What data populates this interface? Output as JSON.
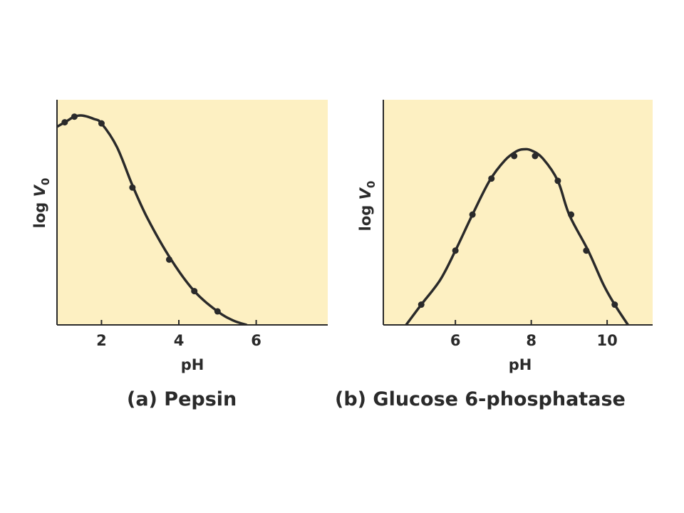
{
  "colors": {
    "plot_background": "#fdf0c2",
    "ink": "#2a2a2a"
  },
  "chart_data": [
    {
      "type": "line",
      "caption": "(a)  Pepsin",
      "title": "Pepsin",
      "xlabel": "pH",
      "ylabel_main": "log ",
      "ylabel_var": "V",
      "ylabel_sub": "0",
      "xlim": [
        0.85,
        7.85
      ],
      "ylim": [
        0,
        1
      ],
      "xticks": [
        2,
        4,
        6
      ],
      "xtick_labels": [
        "2",
        "4",
        "6"
      ],
      "curve": [
        {
          "x": 0.85,
          "y": 0.88
        },
        {
          "x": 1.1,
          "y": 0.905
        },
        {
          "x": 1.3,
          "y": 0.925
        },
        {
          "x": 1.5,
          "y": 0.93
        },
        {
          "x": 1.8,
          "y": 0.915
        },
        {
          "x": 2.0,
          "y": 0.895
        },
        {
          "x": 2.4,
          "y": 0.79
        },
        {
          "x": 2.8,
          "y": 0.62
        },
        {
          "x": 3.2,
          "y": 0.47
        },
        {
          "x": 3.8,
          "y": 0.29
        },
        {
          "x": 4.4,
          "y": 0.15
        },
        {
          "x": 5.0,
          "y": 0.06
        },
        {
          "x": 5.4,
          "y": 0.02
        },
        {
          "x": 5.75,
          "y": 0.0
        }
      ],
      "points": [
        {
          "x": 1.05,
          "y": 0.9
        },
        {
          "x": 1.3,
          "y": 0.925
        },
        {
          "x": 2.0,
          "y": 0.895
        },
        {
          "x": 2.8,
          "y": 0.61
        },
        {
          "x": 3.75,
          "y": 0.29
        },
        {
          "x": 4.4,
          "y": 0.15
        },
        {
          "x": 5.0,
          "y": 0.06
        }
      ]
    },
    {
      "type": "line",
      "caption": "(b) Glucose 6-phosphatase",
      "title": "Glucose 6-phosphatase",
      "xlabel": "pH",
      "ylabel_main": "log ",
      "ylabel_var": "V",
      "ylabel_sub": "0",
      "xlim": [
        4.1,
        11.2
      ],
      "ylim": [
        0,
        1
      ],
      "xticks": [
        6,
        8,
        10
      ],
      "xtick_labels": [
        "6",
        "8",
        "10"
      ],
      "curve": [
        {
          "x": 4.7,
          "y": 0.0
        },
        {
          "x": 5.1,
          "y": 0.09
        },
        {
          "x": 5.6,
          "y": 0.2
        },
        {
          "x": 6.0,
          "y": 0.33
        },
        {
          "x": 6.45,
          "y": 0.49
        },
        {
          "x": 6.9,
          "y": 0.64
        },
        {
          "x": 7.3,
          "y": 0.73
        },
        {
          "x": 7.6,
          "y": 0.77
        },
        {
          "x": 7.8,
          "y": 0.78
        },
        {
          "x": 8.0,
          "y": 0.775
        },
        {
          "x": 8.3,
          "y": 0.74
        },
        {
          "x": 8.7,
          "y": 0.64
        },
        {
          "x": 9.0,
          "y": 0.49
        },
        {
          "x": 9.5,
          "y": 0.33
        },
        {
          "x": 9.9,
          "y": 0.18
        },
        {
          "x": 10.2,
          "y": 0.09
        },
        {
          "x": 10.55,
          "y": 0.0
        }
      ],
      "points": [
        {
          "x": 5.1,
          "y": 0.09
        },
        {
          "x": 6.0,
          "y": 0.33
        },
        {
          "x": 6.45,
          "y": 0.49
        },
        {
          "x": 6.95,
          "y": 0.65
        },
        {
          "x": 7.55,
          "y": 0.75
        },
        {
          "x": 8.1,
          "y": 0.75
        },
        {
          "x": 8.7,
          "y": 0.64
        },
        {
          "x": 9.05,
          "y": 0.49
        },
        {
          "x": 9.45,
          "y": 0.33
        },
        {
          "x": 10.2,
          "y": 0.09
        }
      ]
    }
  ]
}
